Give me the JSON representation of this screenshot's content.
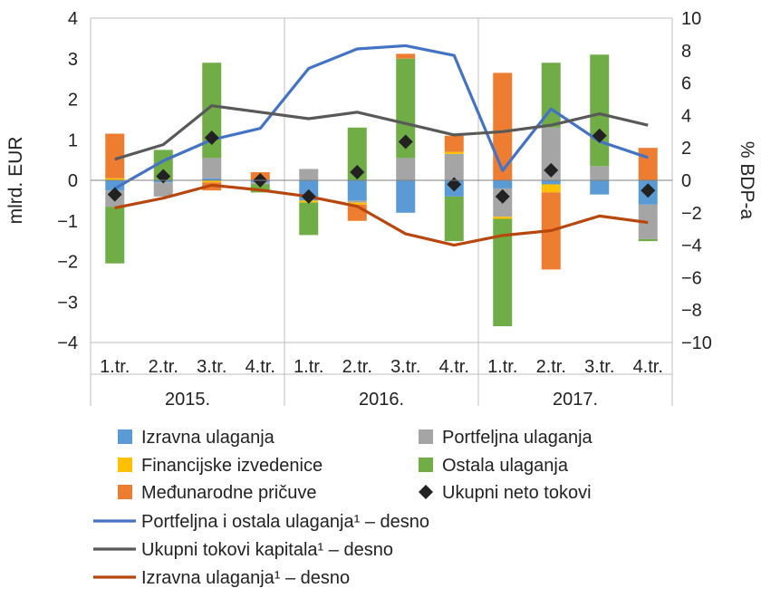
{
  "chart_data": {
    "type": "bar",
    "ylabel": "mlrd. EUR",
    "y2label": "% BDP-a",
    "ylim": [
      -4,
      4
    ],
    "y2lim": [
      -10,
      10
    ],
    "yticks": [
      "4",
      "3",
      "2",
      "1",
      "0",
      "−1",
      "−2",
      "−3",
      "−4"
    ],
    "y2ticks": [
      "10",
      "8",
      "6",
      "4",
      "2",
      "0",
      "−2",
      "−4",
      "−6",
      "−8",
      "−10"
    ],
    "categories": [
      "1.tr.",
      "2.tr.",
      "3.tr.",
      "4.tr.",
      "1.tr.",
      "2.tr.",
      "3.tr.",
      "4.tr.",
      "1.tr.",
      "2.tr.",
      "3.tr.",
      "4.tr."
    ],
    "years": [
      "2015.",
      "2016.",
      "2017."
    ],
    "grid": "vertical",
    "legend_placement": "bottom",
    "bar_series": [
      {
        "name": "Izravna ulaganja",
        "color": "#5B9BD5",
        "values": [
          -0.25,
          -0.05,
          0.05,
          -0.05,
          -0.5,
          -0.5,
          -0.8,
          -0.4,
          -0.2,
          -0.1,
          -0.35,
          -0.6
        ]
      },
      {
        "name": "Portfeljna ulaganja",
        "color": "#A5A5A5",
        "values": [
          -0.4,
          -0.35,
          0.5,
          -0.05,
          0.28,
          -0.05,
          0.55,
          0.65,
          -0.7,
          1.3,
          0.35,
          -0.85
        ]
      },
      {
        "name": "Financijske izvedenice",
        "color": "#FFC000",
        "values": [
          0.05,
          0.0,
          -0.05,
          0.0,
          -0.05,
          -0.05,
          0.0,
          0.05,
          -0.05,
          -0.2,
          0.0,
          0.0
        ]
      },
      {
        "name": "Ostala ulaganja",
        "color": "#70AD47",
        "values": [
          -1.4,
          0.75,
          2.35,
          -0.2,
          -0.8,
          1.3,
          2.45,
          -1.1,
          -2.65,
          1.6,
          2.75,
          -0.05
        ]
      },
      {
        "name": "Međunarodne pričuve",
        "color": "#ED7D31",
        "values": [
          1.1,
          0.0,
          -0.2,
          0.2,
          0.0,
          -0.4,
          0.12,
          0.4,
          2.65,
          -1.9,
          0.0,
          0.8
        ]
      }
    ],
    "marker_series": {
      "name": "Ukupni neto tokovi",
      "color": "#222222",
      "values": [
        -0.35,
        0.1,
        1.05,
        0.0,
        -0.4,
        0.2,
        0.95,
        -0.1,
        -0.4,
        0.25,
        1.1,
        -0.25
      ]
    },
    "line_series": [
      {
        "name": "Portfeljna i ostala ulaganja¹ – desno",
        "color": "#4472C4",
        "axis": "right",
        "values": [
          -0.5,
          1.2,
          2.5,
          3.2,
          6.9,
          8.1,
          8.3,
          7.7,
          0.6,
          4.4,
          2.4,
          1.4
        ]
      },
      {
        "name": "Ukupni tokovi kapitala¹ – desno",
        "color": "#595959",
        "axis": "right",
        "values": [
          1.3,
          2.2,
          4.6,
          4.2,
          3.8,
          4.2,
          3.5,
          2.8,
          3.0,
          3.4,
          4.1,
          3.4
        ]
      },
      {
        "name": "Izravna ulaganja¹ – desno",
        "color": "#B8470E",
        "axis": "right",
        "values": [
          -1.7,
          -1.1,
          -0.3,
          -0.6,
          -1.0,
          -1.6,
          -3.3,
          -4.0,
          -3.4,
          -3.1,
          -2.2,
          -2.6
        ]
      }
    ]
  },
  "legend": {
    "items": [
      {
        "label": "Izravna ulaganja",
        "kind": "square",
        "color": "#5B9BD5",
        "col": 0,
        "row": 0
      },
      {
        "label": "Portfeljna ulaganja",
        "kind": "square",
        "color": "#A5A5A5",
        "col": 1,
        "row": 0
      },
      {
        "label": "Financijske izvedenice",
        "kind": "square",
        "color": "#FFC000",
        "col": 0,
        "row": 1
      },
      {
        "label": "Ostala ulaganja",
        "kind": "square",
        "color": "#70AD47",
        "col": 1,
        "row": 1
      },
      {
        "label": "Međunarodne pričuve",
        "kind": "square",
        "color": "#ED7D31",
        "col": 0,
        "row": 2
      },
      {
        "label": "Ukupni neto tokovi",
        "kind": "diamond",
        "color": "#222222",
        "col": 1,
        "row": 2
      }
    ],
    "line_items": [
      {
        "label": "Portfeljna i ostala ulaganja¹ – desno",
        "color": "#4472C4"
      },
      {
        "label": "Ukupni tokovi kapitala¹ – desno",
        "color": "#595959"
      },
      {
        "label": "Izravna ulaganja¹ – desno",
        "color": "#B8470E"
      }
    ]
  }
}
